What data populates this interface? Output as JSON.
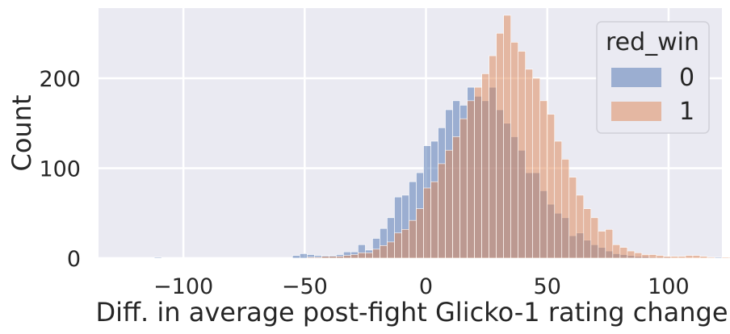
{
  "chart_data": {
    "type": "histogram",
    "xlabel": "Diff. in average post-fight Glicko-1 rating change",
    "ylabel": "Count",
    "xlim": [
      -135,
      122
    ],
    "ylim": [
      0,
      278
    ],
    "x_ticks": [
      -100,
      -50,
      0,
      50,
      100
    ],
    "x_tick_labels": [
      "−100",
      "−50",
      "0",
      "50",
      "100"
    ],
    "y_ticks": [
      0,
      100,
      200
    ],
    "y_tick_labels": [
      "0",
      "100",
      "200"
    ],
    "grid": true,
    "background": "#eaeaf2",
    "bin_start": -112,
    "bin_width": 3,
    "legend": {
      "title": "red_win",
      "placement": "top-right"
    },
    "series": [
      {
        "name": "0",
        "color": "#4c72b0",
        "values": [
          1,
          0,
          0,
          0,
          0,
          0,
          0,
          0,
          0,
          0,
          0,
          0,
          0,
          0,
          0,
          0,
          0,
          0,
          0,
          3,
          5,
          4,
          3,
          3,
          3,
          4,
          7,
          7,
          15,
          9,
          22,
          33,
          45,
          68,
          70,
          85,
          95,
          125,
          130,
          145,
          165,
          175,
          170,
          190,
          180,
          175,
          190,
          165,
          150,
          135,
          120,
          95,
          95,
          75,
          60,
          50,
          45,
          25,
          28,
          20,
          15,
          12,
          8,
          5,
          4,
          3,
          2,
          2,
          1,
          1,
          1,
          0,
          0,
          0,
          0,
          0,
          0,
          1,
          0,
          0,
          0
        ]
      },
      {
        "name": "1",
        "color": "#dd8452",
        "values": [
          0,
          0,
          0,
          0,
          0,
          0,
          0,
          0,
          0,
          0,
          0,
          0,
          0,
          0,
          0,
          0,
          0,
          0,
          0,
          0,
          0,
          1,
          1,
          2,
          2,
          2,
          3,
          4,
          6,
          6,
          10,
          14,
          18,
          28,
          32,
          42,
          55,
          78,
          85,
          105,
          120,
          135,
          155,
          175,
          190,
          205,
          225,
          250,
          270,
          240,
          230,
          210,
          200,
          175,
          160,
          130,
          110,
          90,
          70,
          55,
          45,
          30,
          32,
          15,
          12,
          8,
          6,
          4,
          4,
          3,
          2,
          2,
          2,
          3,
          3,
          2,
          1,
          0,
          1,
          1,
          0
        ]
      }
    ]
  }
}
